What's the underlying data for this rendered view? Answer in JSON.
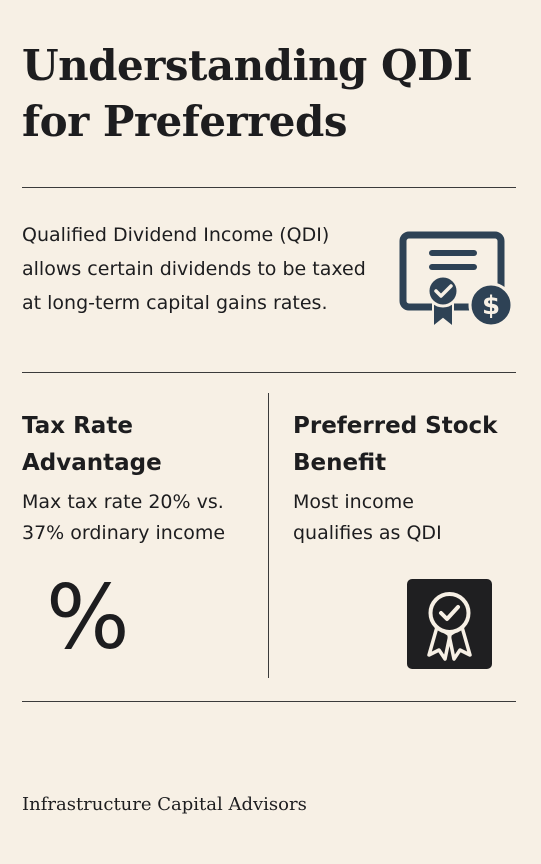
{
  "title": "Understanding QDI for Preferreds",
  "intro": "Qualified Dividend Income (QDI) allows certain dividends to be taxed at long-term capital gains rates.",
  "icons": {
    "certificate": "certificate-dollar-icon",
    "percent": "percent-icon",
    "award": "award-ribbon-icon"
  },
  "left_column": {
    "heading_line1": "Tax Rate",
    "heading_line2": "Advantage",
    "text_line1": "Max tax rate 20% vs.",
    "text_line2": "37% ordinary income",
    "symbol": "%"
  },
  "right_column": {
    "heading_line1": "Preferred Stock",
    "heading_line2": "Benefit",
    "text_line1": "Most income",
    "text_line2": "qualifies as QDI"
  },
  "footer": "Infrastructure Capital Advisors",
  "colors": {
    "background": "#f7f0e5",
    "text": "#1d1d1f",
    "icon_blue": "#2e4255"
  }
}
